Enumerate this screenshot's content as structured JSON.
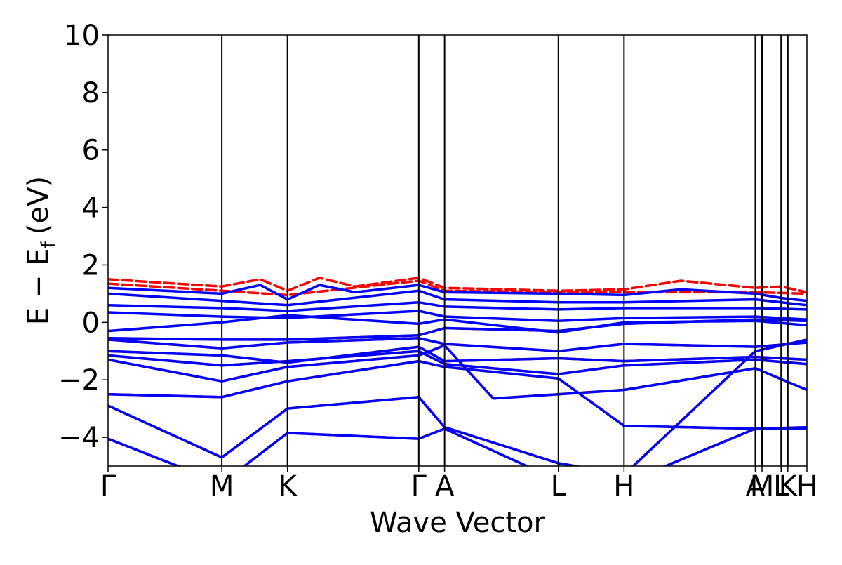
{
  "chart_data": {
    "type": "line",
    "xlabel": "Wave Vector",
    "ylabel_main": "E − E",
    "ylabel_sub": "f",
    "ylabel_unit": "(eV)",
    "ylim": [
      -5,
      10
    ],
    "yticks": [
      {
        "value": 10,
        "label": "10"
      },
      {
        "value": 8,
        "label": "8"
      },
      {
        "value": 6,
        "label": "6"
      },
      {
        "value": 4,
        "label": "4"
      },
      {
        "value": 2,
        "label": "2"
      },
      {
        "value": 0,
        "label": "0"
      },
      {
        "value": -2,
        "label": "−2"
      },
      {
        "value": -4,
        "label": "−4"
      }
    ],
    "kpoints": [
      {
        "label": "Γ",
        "x": 0.0
      },
      {
        "label": "M",
        "x": 0.5758
      },
      {
        "label": "K",
        "x": 0.9081
      },
      {
        "label": "Γ",
        "x": 1.5727
      },
      {
        "label": "A",
        "x": 1.7034
      },
      {
        "label": "L",
        "x": 2.2792
      },
      {
        "label": "H",
        "x": 2.6116
      },
      {
        "label": "A",
        "x": 3.2762
      },
      {
        "label": "M",
        "x": 3.3101
      },
      {
        "label": "L",
        "x": 3.4067
      },
      {
        "label": "K",
        "x": 3.4407
      },
      {
        "label": "H",
        "x": 3.5373
      }
    ],
    "xlim": [
      0.0,
      3.5373
    ],
    "grid": false,
    "series": [
      {
        "style": "spin-down",
        "color": "#ff0000",
        "dash": "dashed",
        "bands": [
          [
            [
              0,
              1.5
            ],
            [
              0.5758,
              1.25
            ],
            [
              0.77,
              1.5
            ],
            [
              0.9081,
              1.1
            ],
            [
              1.07,
              1.55
            ],
            [
              1.25,
              1.25
            ],
            [
              1.5727,
              1.55
            ],
            [
              1.7034,
              1.2
            ],
            [
              2.2792,
              1.1
            ],
            [
              2.6116,
              1.15
            ],
            [
              2.9,
              1.45
            ],
            [
              3.2762,
              1.2
            ],
            [
              3.4067,
              1.25
            ],
            [
              3.5373,
              1.05
            ]
          ],
          [
            [
              0,
              1.35
            ],
            [
              0.5758,
              1.1
            ],
            [
              0.9081,
              0.95
            ],
            [
              1.5727,
              1.45
            ],
            [
              1.7034,
              1.1
            ],
            [
              2.2792,
              1.05
            ],
            [
              2.6116,
              1.05
            ],
            [
              3.2762,
              1.05
            ],
            [
              3.5373,
              1.0
            ]
          ],
          [
            [
              0,
              -0.55
            ],
            [
              0.5758,
              -0.6
            ],
            [
              0.9081,
              -0.6
            ],
            [
              1.5727,
              -0.45
            ],
            [
              1.7034,
              -0.2
            ],
            [
              2.2792,
              -0.3
            ],
            [
              2.6116,
              -0.05
            ],
            [
              3.2762,
              0.1
            ],
            [
              3.5373,
              0.05
            ]
          ],
          [
            [
              0,
              -0.6
            ],
            [
              0.5758,
              -0.9
            ],
            [
              0.9081,
              -0.7
            ],
            [
              1.5727,
              -0.55
            ],
            [
              1.7034,
              -0.75
            ],
            [
              2.2792,
              -1.0
            ],
            [
              2.6116,
              -0.75
            ],
            [
              3.2762,
              -0.85
            ],
            [
              3.5373,
              -0.7
            ]
          ],
          [
            [
              0,
              -1.0
            ],
            [
              0.5758,
              -1.15
            ],
            [
              0.9081,
              -1.4
            ],
            [
              1.5727,
              -0.85
            ],
            [
              1.7034,
              -1.35
            ],
            [
              2.2792,
              -1.25
            ],
            [
              2.6116,
              -1.35
            ],
            [
              3.2762,
              -1.2
            ],
            [
              3.5373,
              -1.3
            ]
          ],
          [
            [
              0,
              -1.15
            ],
            [
              0.5758,
              -1.5
            ],
            [
              0.9081,
              -1.35
            ],
            [
              1.5727,
              -1.0
            ],
            [
              1.7034,
              -1.45
            ],
            [
              2.2792,
              -1.8
            ],
            [
              2.6116,
              -1.5
            ],
            [
              3.2762,
              -1.3
            ],
            [
              3.5373,
              -1.45
            ]
          ],
          [
            [
              0,
              -1.3
            ],
            [
              0.5758,
              -2.05
            ],
            [
              0.9081,
              -1.55
            ],
            [
              1.5727,
              -1.15
            ],
            [
              1.7034,
              -0.8
            ],
            [
              1.95,
              -2.65
            ],
            [
              2.2792,
              -2.5
            ],
            [
              2.6116,
              -2.35
            ],
            [
              3.2762,
              -1.6
            ],
            [
              3.5373,
              -2.35
            ]
          ],
          [
            [
              0,
              -2.5
            ],
            [
              0.5758,
              -2.6
            ],
            [
              0.9081,
              -2.05
            ],
            [
              1.5727,
              -1.35
            ],
            [
              1.7034,
              -1.55
            ],
            [
              2.2792,
              -1.95
            ],
            [
              2.6116,
              -3.6
            ],
            [
              3.2762,
              -3.7
            ],
            [
              3.5373,
              -3.65
            ]
          ],
          [
            [
              0,
              -2.9
            ],
            [
              0.5758,
              -4.7
            ],
            [
              0.9081,
              -3.0
            ],
            [
              1.5727,
              -2.6
            ],
            [
              1.7034,
              -3.65
            ],
            [
              2.2792,
              -4.9
            ],
            [
              2.6116,
              -5.3
            ],
            [
              3.2762,
              -1.0
            ],
            [
              3.5373,
              -0.6
            ]
          ],
          [
            [
              0,
              -4.05
            ],
            [
              0.5758,
              -5.6
            ],
            [
              0.9081,
              -3.85
            ],
            [
              1.5727,
              -4.05
            ],
            [
              1.7034,
              -3.7
            ],
            [
              2.2792,
              -5.5
            ],
            [
              2.6116,
              -5.6
            ],
            [
              3.2762,
              -3.7
            ],
            [
              3.5373,
              -3.7
            ]
          ]
        ]
      },
      {
        "style": "spin-up",
        "color": "#0000ff",
        "dash": "solid",
        "bands": [
          [
            [
              0,
              1.2
            ],
            [
              0.5758,
              1.0
            ],
            [
              0.77,
              1.3
            ],
            [
              0.9081,
              0.8
            ],
            [
              1.07,
              1.3
            ],
            [
              1.25,
              1.05
            ],
            [
              1.5727,
              1.3
            ],
            [
              1.7034,
              1.05
            ],
            [
              2.2792,
              1.0
            ],
            [
              2.6116,
              0.95
            ],
            [
              2.9,
              1.15
            ],
            [
              3.2762,
              1.0
            ],
            [
              3.4067,
              0.85
            ],
            [
              3.5373,
              0.75
            ]
          ],
          [
            [
              0,
              1.0
            ],
            [
              0.5758,
              0.75
            ],
            [
              0.9081,
              0.6
            ],
            [
              1.5727,
              1.1
            ],
            [
              1.7034,
              0.8
            ],
            [
              2.2792,
              0.7
            ],
            [
              2.6116,
              0.7
            ],
            [
              3.2762,
              0.8
            ],
            [
              3.5373,
              0.6
            ]
          ],
          [
            [
              0,
              0.6
            ],
            [
              0.5758,
              0.5
            ],
            [
              0.9081,
              0.4
            ],
            [
              1.5727,
              0.7
            ],
            [
              1.7034,
              0.55
            ],
            [
              2.2792,
              0.45
            ],
            [
              2.6116,
              0.5
            ],
            [
              3.2762,
              0.5
            ],
            [
              3.5373,
              0.45
            ]
          ],
          [
            [
              0,
              0.35
            ],
            [
              0.5758,
              0.2
            ],
            [
              0.9081,
              0.15
            ],
            [
              1.5727,
              0.4
            ],
            [
              1.7034,
              0.2
            ],
            [
              2.2792,
              0.05
            ],
            [
              2.6116,
              0.15
            ],
            [
              3.2762,
              0.2
            ],
            [
              3.5373,
              0.1
            ]
          ],
          [
            [
              0,
              -0.3
            ],
            [
              0.5758,
              0.0
            ],
            [
              0.9081,
              0.25
            ],
            [
              1.5727,
              -0.05
            ],
            [
              1.7034,
              0.1
            ],
            [
              2.2792,
              -0.35
            ],
            [
              2.6116,
              0.0
            ],
            [
              3.2762,
              0.05
            ],
            [
              3.5373,
              -0.1
            ]
          ],
          [
            [
              0,
              -0.55
            ],
            [
              0.5758,
              -0.6
            ],
            [
              0.9081,
              -0.6
            ],
            [
              1.5727,
              -0.45
            ],
            [
              1.7034,
              -0.2
            ],
            [
              2.2792,
              -0.3
            ],
            [
              2.6116,
              -0.05
            ],
            [
              3.2762,
              0.1
            ],
            [
              3.5373,
              0.05
            ]
          ],
          [
            [
              0,
              -0.6
            ],
            [
              0.5758,
              -0.9
            ],
            [
              0.9081,
              -0.7
            ],
            [
              1.5727,
              -0.55
            ],
            [
              1.7034,
              -0.75
            ],
            [
              2.2792,
              -1.0
            ],
            [
              2.6116,
              -0.75
            ],
            [
              3.2762,
              -0.85
            ],
            [
              3.5373,
              -0.7
            ]
          ],
          [
            [
              0,
              -1.0
            ],
            [
              0.5758,
              -1.15
            ],
            [
              0.9081,
              -1.4
            ],
            [
              1.5727,
              -0.85
            ],
            [
              1.7034,
              -1.35
            ],
            [
              2.2792,
              -1.25
            ],
            [
              2.6116,
              -1.35
            ],
            [
              3.2762,
              -1.2
            ],
            [
              3.5373,
              -1.3
            ]
          ],
          [
            [
              0,
              -1.15
            ],
            [
              0.5758,
              -1.5
            ],
            [
              0.9081,
              -1.35
            ],
            [
              1.5727,
              -1.0
            ],
            [
              1.7034,
              -1.45
            ],
            [
              2.2792,
              -1.8
            ],
            [
              2.6116,
              -1.5
            ],
            [
              3.2762,
              -1.3
            ],
            [
              3.5373,
              -1.45
            ]
          ],
          [
            [
              0,
              -1.3
            ],
            [
              0.5758,
              -2.05
            ],
            [
              0.9081,
              -1.55
            ],
            [
              1.5727,
              -1.15
            ],
            [
              1.7034,
              -0.8
            ],
            [
              1.95,
              -2.65
            ],
            [
              2.2792,
              -2.5
            ],
            [
              2.6116,
              -2.35
            ],
            [
              3.2762,
              -1.6
            ],
            [
              3.5373,
              -2.35
            ]
          ],
          [
            [
              0,
              -2.5
            ],
            [
              0.5758,
              -2.6
            ],
            [
              0.9081,
              -2.05
            ],
            [
              1.5727,
              -1.35
            ],
            [
              1.7034,
              -1.55
            ],
            [
              2.2792,
              -1.95
            ],
            [
              2.6116,
              -3.6
            ],
            [
              3.2762,
              -3.7
            ],
            [
              3.5373,
              -3.65
            ]
          ],
          [
            [
              0,
              -2.9
            ],
            [
              0.5758,
              -4.7
            ],
            [
              0.9081,
              -3.0
            ],
            [
              1.5727,
              -2.6
            ],
            [
              1.7034,
              -3.65
            ],
            [
              2.2792,
              -4.9
            ],
            [
              2.6116,
              -5.3
            ],
            [
              3.2762,
              -1.0
            ],
            [
              3.5373,
              -0.6
            ]
          ],
          [
            [
              0,
              -4.05
            ],
            [
              0.5758,
              -5.6
            ],
            [
              0.9081,
              -3.85
            ],
            [
              1.5727,
              -4.05
            ],
            [
              1.7034,
              -3.7
            ],
            [
              2.2792,
              -5.5
            ],
            [
              2.6116,
              -5.6
            ],
            [
              3.2762,
              -3.7
            ],
            [
              3.5373,
              -3.7
            ]
          ]
        ]
      }
    ]
  }
}
